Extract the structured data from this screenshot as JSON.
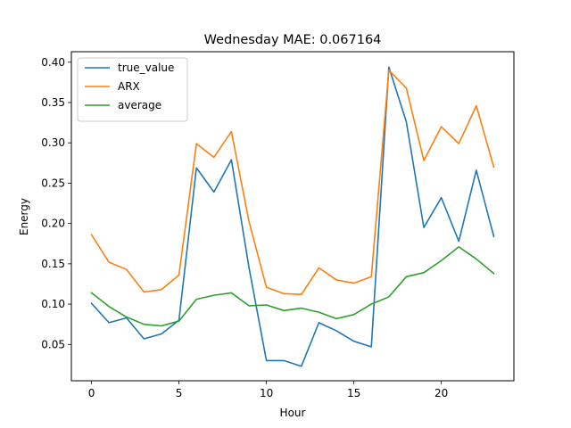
{
  "chart_data": {
    "type": "line",
    "title": "Wednesday MAE: 0.067164",
    "xlabel": "Hour",
    "ylabel": "Energy",
    "xlim": [
      -1.15,
      24.15
    ],
    "ylim": [
      0.005,
      0.413
    ],
    "xticks": [
      0,
      5,
      10,
      15,
      20
    ],
    "yticks": [
      0.05,
      0.1,
      0.15,
      0.2,
      0.25,
      0.3,
      0.35,
      0.4
    ],
    "xtick_labels": [
      "0",
      "5",
      "10",
      "15",
      "20"
    ],
    "ytick_labels": [
      "0.05",
      "0.10",
      "0.15",
      "0.20",
      "0.25",
      "0.30",
      "0.35",
      "0.40"
    ],
    "grid": false,
    "legend_position": "top-left",
    "x": [
      0,
      1,
      2,
      3,
      4,
      5,
      6,
      7,
      8,
      9,
      10,
      11,
      12,
      13,
      14,
      15,
      16,
      17,
      18,
      19,
      20,
      21,
      22,
      23
    ],
    "series": [
      {
        "name": "true_value",
        "color": "#1f77b4",
        "values": [
          0.101,
          0.077,
          0.083,
          0.057,
          0.063,
          0.08,
          0.269,
          0.239,
          0.279,
          0.146,
          0.03,
          0.03,
          0.023,
          0.077,
          0.067,
          0.054,
          0.047,
          0.394,
          0.326,
          0.195,
          0.232,
          0.178,
          0.266,
          0.184
        ]
      },
      {
        "name": "ARX",
        "color": "#ff7f0e",
        "values": [
          0.186,
          0.152,
          0.143,
          0.115,
          0.118,
          0.136,
          0.299,
          0.282,
          0.314,
          0.203,
          0.121,
          0.113,
          0.112,
          0.145,
          0.13,
          0.126,
          0.134,
          0.39,
          0.368,
          0.278,
          0.32,
          0.299,
          0.346,
          0.27
        ]
      },
      {
        "name": "average",
        "color": "#2ca02c",
        "values": [
          0.114,
          0.097,
          0.084,
          0.075,
          0.073,
          0.079,
          0.106,
          0.111,
          0.114,
          0.098,
          0.099,
          0.092,
          0.095,
          0.09,
          0.082,
          0.087,
          0.1,
          0.109,
          0.134,
          0.139,
          0.154,
          0.171,
          0.156,
          0.138
        ]
      }
    ]
  }
}
